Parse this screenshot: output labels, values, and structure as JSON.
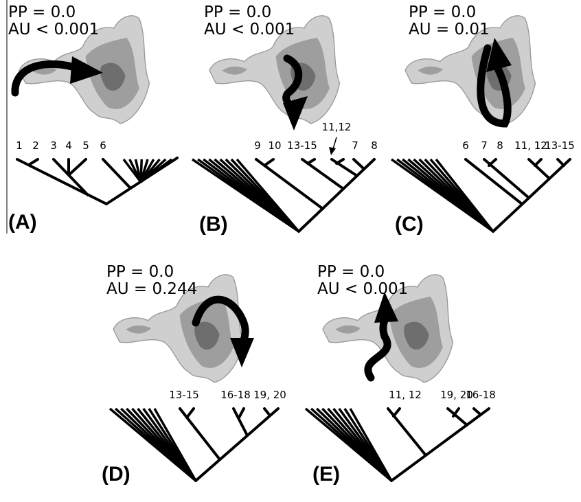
{
  "panels": [
    {
      "label": "(A)",
      "pp": "PP = 0.0",
      "au": "AU < 0.001",
      "tips": [
        "1",
        "2",
        "3",
        "4",
        "5",
        "6"
      ]
    },
    {
      "label": "(B)",
      "pp": "PP = 0.0",
      "au": "AU < 0.001",
      "tips": [
        "9",
        "10",
        "13-15",
        "7",
        "8"
      ],
      "annotation": "11,12"
    },
    {
      "label": "(C)",
      "pp": "PP = 0.0",
      "au": "AU = 0.01",
      "tips": [
        "6",
        "7",
        "8",
        "11, 12",
        "13-15"
      ]
    },
    {
      "label": "(D)",
      "pp": "PP = 0.0",
      "au": "AU = 0.244",
      "tips": [
        "13-15",
        "16-18",
        "19, 20"
      ]
    },
    {
      "label": "(E)",
      "pp": "PP = 0.0",
      "au": "AU < 0.001",
      "tips": [
        "11, 12",
        "19, 20",
        "16-18"
      ]
    }
  ]
}
